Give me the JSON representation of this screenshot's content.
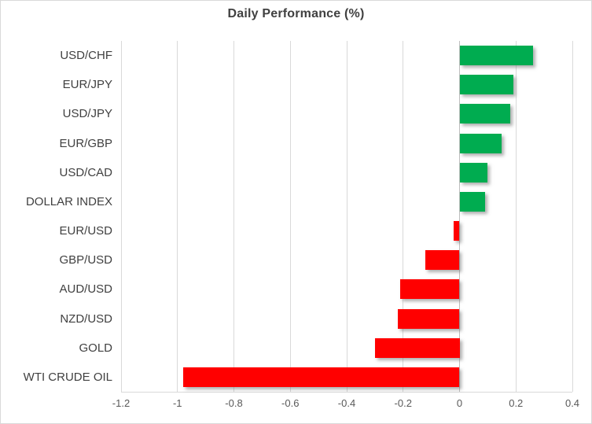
{
  "chart": {
    "title": "Daily Performance (%)"
  },
  "chart_data": {
    "type": "bar",
    "orientation": "horizontal",
    "title": "Daily Performance (%)",
    "categories": [
      "USD/CHF",
      "EUR/JPY",
      "USD/JPY",
      "EUR/GBP",
      "USD/CAD",
      "DOLLAR INDEX",
      "EUR/USD",
      "GBP/USD",
      "AUD/USD",
      "NZD/USD",
      "GOLD",
      "WTI CRUDE OIL"
    ],
    "values": [
      0.26,
      0.19,
      0.18,
      0.15,
      0.1,
      0.09,
      -0.02,
      -0.12,
      -0.21,
      -0.22,
      -0.3,
      -0.98
    ],
    "xlabel": "",
    "ylabel": "",
    "xlim": [
      -1.2,
      0.4
    ],
    "xticks": [
      -1.2,
      -1,
      -0.8,
      -0.6,
      -0.4,
      -0.2,
      0,
      0.2,
      0.4
    ],
    "xtick_labels": [
      "-1.2",
      "-1",
      "-0.8",
      "-0.6",
      "-0.4",
      "-0.2",
      "0",
      "0.2",
      "0.4"
    ],
    "grid": true,
    "legend": false,
    "colors": {
      "positive": "#00AC50",
      "negative": "#FF0000",
      "gridline": "#D9D9D9",
      "zero_line": "#BFBFBF",
      "title_text": "#404040",
      "category_text": "#404040",
      "tick_text": "#595959",
      "background": "#FFFFFF",
      "border": "#D9D9D9"
    }
  }
}
